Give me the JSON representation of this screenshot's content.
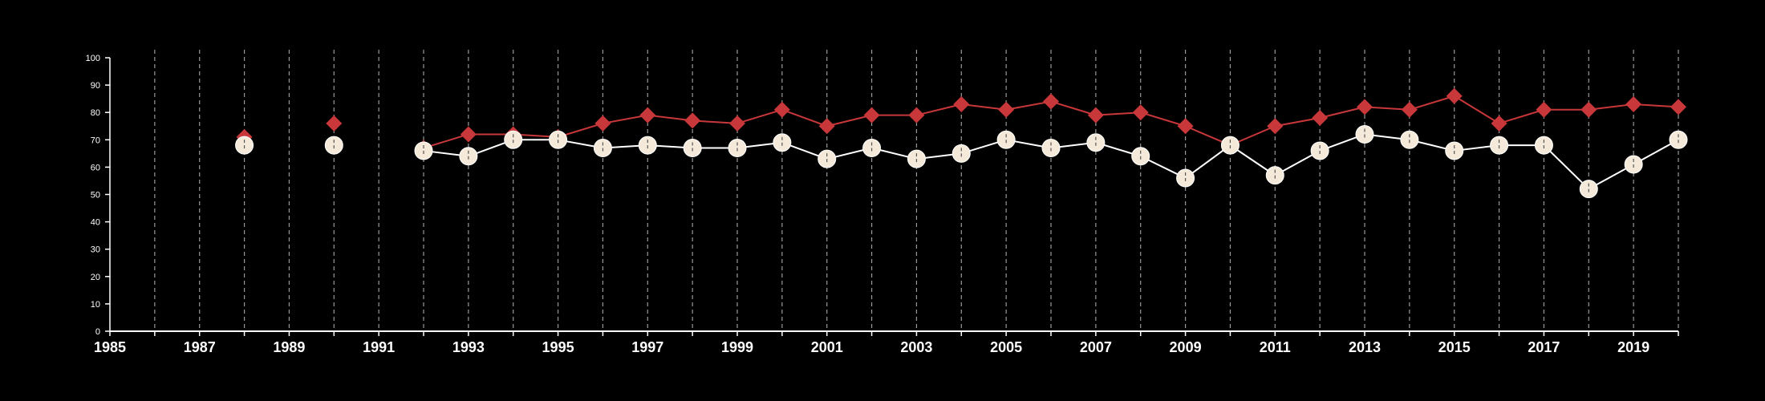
{
  "chart_data": {
    "type": "line",
    "title": "",
    "xlabel": "",
    "ylabel": "",
    "xlim": [
      1985,
      2020
    ],
    "ylim": [
      0,
      100
    ],
    "x_ticks": [
      "1985",
      "1987",
      "1989",
      "1991",
      "1993",
      "1995",
      "1997",
      "1999",
      "2001",
      "2003",
      "2005",
      "2007",
      "2009",
      "2011",
      "2013",
      "2015",
      "2017",
      "2019"
    ],
    "y_ticks": [
      "0",
      "10",
      "20",
      "30",
      "40",
      "50",
      "60",
      "70",
      "80",
      "90",
      "100"
    ],
    "grid": "vertical dashed lines at each year from 1986 to 2020",
    "legend": "none",
    "series": [
      {
        "marker": "diamond",
        "color": "#c8373a",
        "points": [
          [
            1988,
            71
          ],
          [
            1990,
            76
          ],
          [
            1992,
            67
          ],
          [
            1993,
            72
          ],
          [
            1994,
            72
          ],
          [
            1995,
            71
          ],
          [
            1996,
            76
          ],
          [
            1997,
            79
          ],
          [
            1998,
            77
          ],
          [
            1999,
            76
          ],
          [
            2000,
            81
          ],
          [
            2001,
            75
          ],
          [
            2002,
            79
          ],
          [
            2003,
            79
          ],
          [
            2004,
            83
          ],
          [
            2005,
            81
          ],
          [
            2006,
            84
          ],
          [
            2007,
            79
          ],
          [
            2008,
            80
          ],
          [
            2009,
            75
          ],
          [
            2010,
            68
          ],
          [
            2011,
            75
          ],
          [
            2012,
            78
          ],
          [
            2013,
            82
          ],
          [
            2014,
            81
          ],
          [
            2015,
            86
          ],
          [
            2016,
            76
          ],
          [
            2017,
            81
          ],
          [
            2018,
            81
          ],
          [
            2019,
            83
          ],
          [
            2020,
            82
          ]
        ]
      },
      {
        "marker": "circle",
        "color": "#f5ead9",
        "points": [
          [
            1988,
            68
          ],
          [
            1990,
            68
          ],
          [
            1992,
            66
          ],
          [
            1993,
            64
          ],
          [
            1994,
            70
          ],
          [
            1995,
            70
          ],
          [
            1996,
            67
          ],
          [
            1997,
            68
          ],
          [
            1998,
            67
          ],
          [
            1999,
            67
          ],
          [
            2000,
            69
          ],
          [
            2001,
            63
          ],
          [
            2002,
            67
          ],
          [
            2003,
            63
          ],
          [
            2004,
            65
          ],
          [
            2005,
            70
          ],
          [
            2006,
            67
          ],
          [
            2007,
            69
          ],
          [
            2008,
            64
          ],
          [
            2009,
            56
          ],
          [
            2010,
            68
          ],
          [
            2011,
            57
          ],
          [
            2012,
            66
          ],
          [
            2013,
            72
          ],
          [
            2014,
            70
          ],
          [
            2015,
            66
          ],
          [
            2016,
            68
          ],
          [
            2017,
            68
          ],
          [
            2018,
            52
          ],
          [
            2019,
            61
          ],
          [
            2020,
            70
          ]
        ]
      }
    ],
    "line_color": "#ffffff",
    "background": "#000000"
  }
}
